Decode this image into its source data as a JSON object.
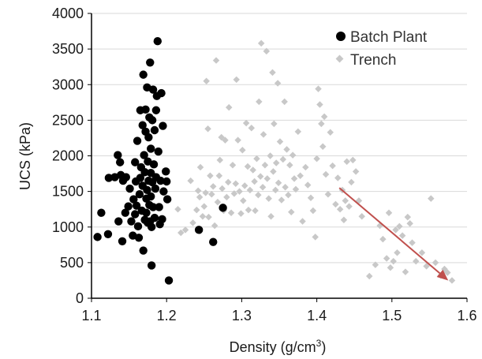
{
  "chart_data": {
    "type": "scatter",
    "title": "",
    "xlabel": "Density (g/cm",
    "xlabel_sup": "3",
    "xlabel_tail": ")",
    "ylabel": "UCS (kPa)",
    "xlim": [
      1.1,
      1.6
    ],
    "ylim": [
      0,
      4000
    ],
    "xticks": [
      "1.1",
      "1.2",
      "1.3",
      "1.4",
      "1.5",
      "1.6"
    ],
    "yticks": [
      "0",
      "500",
      "1000",
      "1500",
      "2000",
      "2500",
      "3000",
      "3500",
      "4000"
    ],
    "grid": "horizontal",
    "legend_position": "top-right",
    "colors": {
      "batch": "#000000",
      "trench": "#c8c8c8",
      "arrow": "#c0504d",
      "grid": "#d9d9d9"
    },
    "arrow": {
      "from": [
        1.43,
        1550
      ],
      "to": [
        1.575,
        250
      ]
    },
    "series": [
      {
        "name": "Batch Plant",
        "marker": "circle",
        "points": [
          [
            1.108,
            860
          ],
          [
            1.113,
            1200
          ],
          [
            1.122,
            900
          ],
          [
            1.123,
            1690
          ],
          [
            1.131,
            1700
          ],
          [
            1.135,
            2010
          ],
          [
            1.136,
            1080
          ],
          [
            1.138,
            1910
          ],
          [
            1.139,
            1730
          ],
          [
            1.141,
            800
          ],
          [
            1.142,
            1650
          ],
          [
            1.145,
            1200
          ],
          [
            1.146,
            1700
          ],
          [
            1.149,
            1290
          ],
          [
            1.151,
            1540
          ],
          [
            1.153,
            1080
          ],
          [
            1.155,
            880
          ],
          [
            1.156,
            1390
          ],
          [
            1.158,
            1180
          ],
          [
            1.158,
            1910
          ],
          [
            1.159,
            1640
          ],
          [
            1.16,
            1300
          ],
          [
            1.161,
            2210
          ],
          [
            1.162,
            1010
          ],
          [
            1.163,
            850
          ],
          [
            1.164,
            1460
          ],
          [
            1.165,
            2640
          ],
          [
            1.165,
            1690
          ],
          [
            1.166,
            1840
          ],
          [
            1.167,
            1230
          ],
          [
            1.168,
            1580
          ],
          [
            1.168,
            2430
          ],
          [
            1.169,
            3140
          ],
          [
            1.169,
            670
          ],
          [
            1.17,
            2010
          ],
          [
            1.171,
            1770
          ],
          [
            1.171,
            1100
          ],
          [
            1.172,
            2340
          ],
          [
            1.172,
            2650
          ],
          [
            1.173,
            1400
          ],
          [
            1.173,
            1200
          ],
          [
            1.174,
            2960
          ],
          [
            1.174,
            1520
          ],
          [
            1.175,
            1920
          ],
          [
            1.175,
            1060
          ],
          [
            1.176,
            1650
          ],
          [
            1.176,
            2260
          ],
          [
            1.177,
            2540
          ],
          [
            1.177,
            1310
          ],
          [
            1.178,
            1080
          ],
          [
            1.178,
            3310
          ],
          [
            1.179,
            1760
          ],
          [
            1.179,
            2100
          ],
          [
            1.179,
            1430
          ],
          [
            1.18,
            460
          ],
          [
            1.18,
            1000
          ],
          [
            1.181,
            2500
          ],
          [
            1.181,
            1630
          ],
          [
            1.182,
            1280
          ],
          [
            1.182,
            2930
          ],
          [
            1.183,
            1880
          ],
          [
            1.184,
            1130
          ],
          [
            1.184,
            2360
          ],
          [
            1.185,
            1540
          ],
          [
            1.186,
            1700
          ],
          [
            1.186,
            2640
          ],
          [
            1.187,
            2840
          ],
          [
            1.188,
            3610
          ],
          [
            1.189,
            2060
          ],
          [
            1.19,
            1280
          ],
          [
            1.191,
            1040
          ],
          [
            1.192,
            1650
          ],
          [
            1.193,
            2880
          ],
          [
            1.194,
            1110
          ],
          [
            1.195,
            2420
          ],
          [
            1.196,
            1500
          ],
          [
            1.199,
            1780
          ],
          [
            1.2,
            1640
          ],
          [
            1.201,
            1390
          ],
          [
            1.203,
            250
          ],
          [
            1.243,
            960
          ],
          [
            1.262,
            790
          ],
          [
            1.275,
            1270
          ]
        ]
      },
      {
        "name": "Trench",
        "marker": "diamond",
        "points": [
          [
            1.215,
            1250
          ],
          [
            1.219,
            920
          ],
          [
            1.225,
            960
          ],
          [
            1.232,
            1650
          ],
          [
            1.235,
            1060
          ],
          [
            1.24,
            1240
          ],
          [
            1.242,
            1510
          ],
          [
            1.244,
            1420
          ],
          [
            1.245,
            1840
          ],
          [
            1.248,
            1150
          ],
          [
            1.25,
            1290
          ],
          [
            1.252,
            1480
          ],
          [
            1.253,
            3050
          ],
          [
            1.255,
            2380
          ],
          [
            1.256,
            1140
          ],
          [
            1.258,
            1720
          ],
          [
            1.26,
            1460
          ],
          [
            1.262,
            1570
          ],
          [
            1.264,
            1020
          ],
          [
            1.266,
            3340
          ],
          [
            1.268,
            1350
          ],
          [
            1.27,
            1720
          ],
          [
            1.271,
            1940
          ],
          [
            1.273,
            2260
          ],
          [
            1.274,
            1540
          ],
          [
            1.276,
            1230
          ],
          [
            1.278,
            2220
          ],
          [
            1.28,
            1420
          ],
          [
            1.282,
            1630
          ],
          [
            1.283,
            2680
          ],
          [
            1.286,
            1200
          ],
          [
            1.288,
            1870
          ],
          [
            1.29,
            1470
          ],
          [
            1.292,
            1610
          ],
          [
            1.293,
            3070
          ],
          [
            1.295,
            2220
          ],
          [
            1.297,
            1500
          ],
          [
            1.299,
            1190
          ],
          [
            1.301,
            2080
          ],
          [
            1.302,
            1370
          ],
          [
            1.304,
            1580
          ],
          [
            1.306,
            2460
          ],
          [
            1.308,
            1850
          ],
          [
            1.309,
            1240
          ],
          [
            1.311,
            1520
          ],
          [
            1.313,
            2390
          ],
          [
            1.315,
            1800
          ],
          [
            1.317,
            1640
          ],
          [
            1.318,
            1230
          ],
          [
            1.32,
            1960
          ],
          [
            1.322,
            1450
          ],
          [
            1.323,
            2760
          ],
          [
            1.325,
            1710
          ],
          [
            1.326,
            3580
          ],
          [
            1.328,
            1560
          ],
          [
            1.329,
            2300
          ],
          [
            1.331,
            1870
          ],
          [
            1.333,
            3470
          ],
          [
            1.334,
            1680
          ],
          [
            1.336,
            1400
          ],
          [
            1.338,
            2000
          ],
          [
            1.339,
            1150
          ],
          [
            1.341,
            3170
          ],
          [
            1.342,
            1780
          ],
          [
            1.343,
            2450
          ],
          [
            1.345,
            1520
          ],
          [
            1.346,
            1900
          ],
          [
            1.348,
            3020
          ],
          [
            1.349,
            1620
          ],
          [
            1.351,
            2200
          ],
          [
            1.353,
            1380
          ],
          [
            1.355,
            1950
          ],
          [
            1.357,
            2760
          ],
          [
            1.358,
            1560
          ],
          [
            1.36,
            2090
          ],
          [
            1.362,
            1450
          ],
          [
            1.364,
            1870
          ],
          [
            1.366,
            1210
          ],
          [
            1.368,
            2010
          ],
          [
            1.37,
            1680
          ],
          [
            1.372,
            1530
          ],
          [
            1.375,
            2340
          ],
          [
            1.378,
            1720
          ],
          [
            1.381,
            1080
          ],
          [
            1.385,
            1840
          ],
          [
            1.388,
            1590
          ],
          [
            1.392,
            1410
          ],
          [
            1.395,
            1230
          ],
          [
            1.398,
            860
          ],
          [
            1.4,
            1960
          ],
          [
            1.402,
            2940
          ],
          [
            1.404,
            2720
          ],
          [
            1.406,
            2450
          ],
          [
            1.408,
            2130
          ],
          [
            1.41,
            2550
          ],
          [
            1.412,
            1740
          ],
          [
            1.415,
            1460
          ],
          [
            1.418,
            2330
          ],
          [
            1.421,
            1860
          ],
          [
            1.425,
            1320
          ],
          [
            1.428,
            1690
          ],
          [
            1.431,
            1250
          ],
          [
            1.434,
            1520
          ],
          [
            1.436,
            1100
          ],
          [
            1.438,
            1370
          ],
          [
            1.44,
            1920
          ],
          [
            1.443,
            1290
          ],
          [
            1.446,
            1630
          ],
          [
            1.448,
            1940
          ],
          [
            1.452,
            1780
          ],
          [
            1.456,
            1370
          ],
          [
            1.46,
            1150
          ],
          [
            1.47,
            310
          ],
          [
            1.478,
            470
          ],
          [
            1.484,
            1020
          ],
          [
            1.488,
            830
          ],
          [
            1.493,
            560
          ],
          [
            1.496,
            1200
          ],
          [
            1.498,
            430
          ],
          [
            1.502,
            520
          ],
          [
            1.505,
            960
          ],
          [
            1.507,
            640
          ],
          [
            1.51,
            1010
          ],
          [
            1.514,
            880
          ],
          [
            1.518,
            370
          ],
          [
            1.521,
            1140
          ],
          [
            1.524,
            1050
          ],
          [
            1.527,
            780
          ],
          [
            1.532,
            520
          ],
          [
            1.54,
            640
          ],
          [
            1.546,
            450
          ],
          [
            1.552,
            1400
          ],
          [
            1.558,
            500
          ],
          [
            1.565,
            320
          ],
          [
            1.57,
            410
          ],
          [
            1.574,
            360
          ],
          [
            1.58,
            250
          ]
        ]
      }
    ]
  }
}
